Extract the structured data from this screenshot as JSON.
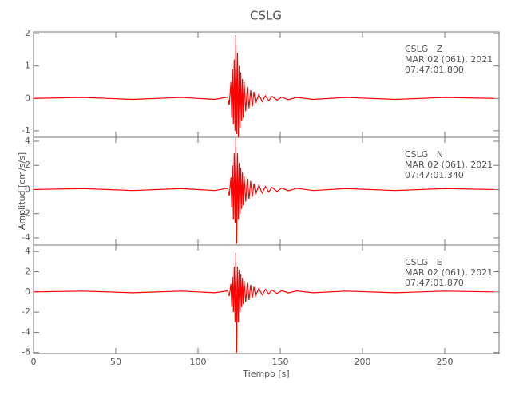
{
  "chart_data": [
    {
      "type": "line",
      "title": "CSLG",
      "annotations": [
        "CSLG   Z",
        "MAR 02 (061), 2021",
        "07:47:01.800"
      ],
      "x": [
        0,
        30,
        60,
        90,
        110,
        118,
        119,
        120,
        120.5,
        121,
        121.5,
        122,
        122.5,
        123,
        123.5,
        124,
        124.5,
        125,
        125.5,
        126,
        126.5,
        127,
        127.5,
        128,
        129,
        130,
        131,
        132,
        133,
        134,
        135,
        137,
        139,
        141,
        143,
        145,
        148,
        151,
        155,
        160,
        170,
        190,
        220,
        250,
        280
      ],
      "series": [
        {
          "color": "#ff0000",
          "values": [
            0,
            0.03,
            -0.03,
            0.03,
            -0.03,
            0.04,
            -0.2,
            0.5,
            -0.6,
            0.9,
            -0.8,
            1.2,
            -1.0,
            1.95,
            -1.1,
            1.4,
            -1.2,
            1.0,
            -0.9,
            0.8,
            -0.7,
            0.6,
            -0.6,
            0.5,
            -0.4,
            0.35,
            -0.3,
            0.25,
            -0.25,
            0.2,
            -0.15,
            0.12,
            -0.1,
            0.08,
            -0.07,
            0.06,
            -0.05,
            0.04,
            -0.04,
            0.03,
            -0.03,
            0.03,
            -0.03,
            0.03,
            0
          ]
        }
      ],
      "xlim": [
        0,
        283
      ],
      "ylim": [
        -1.2,
        2.05
      ],
      "yticks": [
        -1,
        0,
        1,
        2
      ]
    },
    {
      "type": "line",
      "y_label": "Amplitud [cm/s/s]",
      "annotations": [
        "CSLG   N",
        "MAR 02 (061), 2021",
        "07:47:01.340"
      ],
      "x": [
        0,
        30,
        60,
        90,
        110,
        118,
        119,
        120,
        120.5,
        121,
        121.5,
        122,
        122.5,
        123,
        123.5,
        124,
        124.5,
        125,
        125.5,
        126,
        126.5,
        127,
        127.5,
        128,
        129,
        130,
        131,
        132,
        133,
        134,
        135,
        137,
        139,
        141,
        143,
        145,
        148,
        151,
        155,
        160,
        170,
        190,
        220,
        250,
        280
      ],
      "series": [
        {
          "color": "#ff0000",
          "values": [
            0,
            0.08,
            -0.08,
            0.08,
            -0.08,
            0.1,
            -0.5,
            1.0,
            -1.5,
            2.0,
            -2.5,
            3.0,
            -2.8,
            4.3,
            -4.5,
            3.0,
            -2.5,
            2.2,
            -2.0,
            1.8,
            -1.6,
            1.4,
            -1.3,
            1.1,
            -1.0,
            0.9,
            -0.8,
            0.7,
            -0.6,
            0.5,
            -0.4,
            0.35,
            -0.3,
            0.25,
            -0.2,
            0.18,
            -0.15,
            0.12,
            -0.1,
            0.1,
            -0.08,
            0.08,
            -0.08,
            0.08,
            0
          ]
        }
      ],
      "xlim": [
        0,
        283
      ],
      "ylim": [
        -4.6,
        4.33
      ],
      "yticks": [
        -4,
        -2,
        0,
        2,
        4
      ]
    },
    {
      "type": "line",
      "x_label": "Tiempo [s]",
      "annotations": [
        "CSLG   E",
        "MAR 02 (061), 2021",
        "07:47:01.870"
      ],
      "x": [
        0,
        30,
        60,
        90,
        110,
        118,
        119,
        120,
        120.5,
        121,
        121.5,
        122,
        122.5,
        123,
        123.5,
        124,
        124.5,
        125,
        125.5,
        126,
        126.5,
        127,
        127.5,
        128,
        129,
        130,
        131,
        132,
        133,
        134,
        135,
        137,
        139,
        141,
        143,
        145,
        148,
        151,
        155,
        160,
        170,
        190,
        220,
        250,
        280
      ],
      "series": [
        {
          "color": "#ff0000",
          "values": [
            0,
            0.08,
            -0.08,
            0.08,
            -0.08,
            0.1,
            -0.4,
            0.8,
            -1.5,
            1.5,
            -2.0,
            2.5,
            -3.0,
            3.9,
            -6.0,
            2.5,
            -3.0,
            2.2,
            -2.0,
            1.8,
            -1.5,
            1.4,
            -1.2,
            1.1,
            -1.0,
            0.9,
            -0.8,
            0.7,
            -0.6,
            0.5,
            -0.4,
            0.35,
            -0.3,
            0.25,
            -0.2,
            0.18,
            -0.15,
            0.12,
            -0.1,
            0.1,
            -0.08,
            0.08,
            -0.08,
            0.08,
            0
          ]
        }
      ],
      "xlim": [
        0,
        283
      ],
      "ylim": [
        -6.1,
        4.65
      ],
      "yticks": [
        -6,
        -4,
        -2,
        0,
        2,
        4
      ],
      "xticks": [
        0,
        50,
        100,
        150,
        200,
        250
      ]
    }
  ]
}
